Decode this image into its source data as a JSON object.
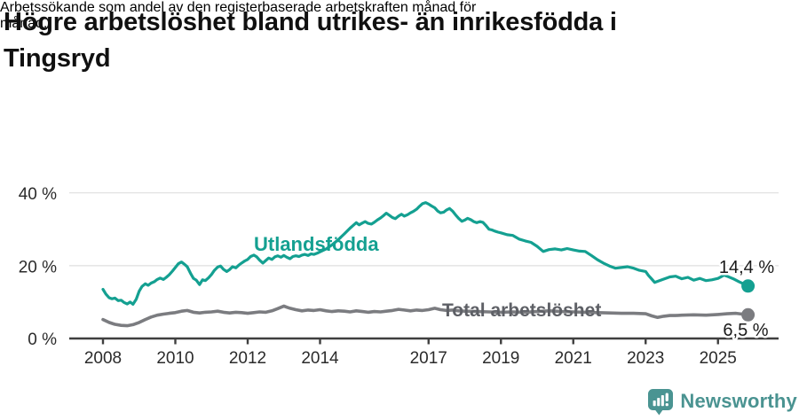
{
  "header": {
    "title_lines": [
      "Högre arbetslöshet bland utrikes- än inrikesfödda i",
      "Tingsryd"
    ],
    "subtitle_lines": [
      "Arbetssökande som andel av den registerbaserade arbetskraften månad för",
      "månad."
    ]
  },
  "footer": {
    "brand": "Newsworthy",
    "logo_icon": "bar-chart-speech-bubble-icon",
    "brand_color": "#4a9391"
  },
  "chart_data": {
    "type": "line",
    "title": "Högre arbetslöshet bland utrikes- än inrikesfödda i Tingsryd",
    "subtitle": "Arbetssökande som andel av den registerbaserade arbetskraften månad för månad.",
    "unit": "%",
    "xlim": [
      2008,
      2025.83
    ],
    "ylim": [
      0,
      40
    ],
    "grid": "horizontal",
    "legend_position": "inline-labels",
    "x_ticks": [
      2008,
      2010,
      2012,
      2014,
      2017,
      2019,
      2021,
      2023,
      2025
    ],
    "y_ticks": [
      {
        "value": 0,
        "label": "0 %"
      },
      {
        "value": 20,
        "label": "20 %"
      },
      {
        "value": 40,
        "label": "40 %"
      }
    ],
    "colors": {
      "grid": "#e2e2e2",
      "axis": "#3f3f3f"
    },
    "series": [
      {
        "id": "utlandsfodda",
        "name": "Utlandsfödda",
        "color": "#14a091",
        "width": 3.2,
        "label_color": "#14a091",
        "label_size": 22,
        "label_pos": {
          "x": 286,
          "y": 283
        },
        "end_label": "14,4 %",
        "end_value": 14.4,
        "end_label_pos": {
          "x": 841,
          "y": 308
        },
        "points": [
          [
            2008.0,
            13.5
          ],
          [
            2008.08,
            12.2
          ],
          [
            2008.17,
            11.2
          ],
          [
            2008.25,
            10.9
          ],
          [
            2008.33,
            11.1
          ],
          [
            2008.42,
            10.4
          ],
          [
            2008.5,
            10.5
          ],
          [
            2008.58,
            9.9
          ],
          [
            2008.67,
            9.5
          ],
          [
            2008.75,
            10.0
          ],
          [
            2008.83,
            9.4
          ],
          [
            2008.92,
            10.8
          ],
          [
            2009.0,
            13.0
          ],
          [
            2009.08,
            14.3
          ],
          [
            2009.17,
            15.0
          ],
          [
            2009.25,
            14.6
          ],
          [
            2009.33,
            15.2
          ],
          [
            2009.42,
            15.6
          ],
          [
            2009.5,
            16.2
          ],
          [
            2009.58,
            16.6
          ],
          [
            2009.67,
            16.2
          ],
          [
            2009.75,
            16.8
          ],
          [
            2009.83,
            17.5
          ],
          [
            2009.92,
            18.5
          ],
          [
            2010.0,
            19.5
          ],
          [
            2010.08,
            20.5
          ],
          [
            2010.17,
            21.0
          ],
          [
            2010.25,
            20.4
          ],
          [
            2010.33,
            19.7
          ],
          [
            2010.42,
            17.9
          ],
          [
            2010.5,
            16.5
          ],
          [
            2010.58,
            16.0
          ],
          [
            2010.67,
            14.8
          ],
          [
            2010.75,
            16.1
          ],
          [
            2010.83,
            15.9
          ],
          [
            2010.92,
            16.7
          ],
          [
            2011.0,
            17.6
          ],
          [
            2011.08,
            18.7
          ],
          [
            2011.17,
            19.6
          ],
          [
            2011.25,
            19.9
          ],
          [
            2011.33,
            19.0
          ],
          [
            2011.42,
            18.4
          ],
          [
            2011.5,
            18.9
          ],
          [
            2011.58,
            19.7
          ],
          [
            2011.67,
            19.4
          ],
          [
            2011.75,
            20.1
          ],
          [
            2011.83,
            20.7
          ],
          [
            2011.92,
            21.3
          ],
          [
            2012.0,
            21.7
          ],
          [
            2012.08,
            22.5
          ],
          [
            2012.17,
            22.9
          ],
          [
            2012.25,
            22.4
          ],
          [
            2012.33,
            21.5
          ],
          [
            2012.42,
            20.7
          ],
          [
            2012.5,
            21.4
          ],
          [
            2012.58,
            22.1
          ],
          [
            2012.67,
            21.7
          ],
          [
            2012.75,
            22.4
          ],
          [
            2012.83,
            22.7
          ],
          [
            2012.92,
            22.3
          ],
          [
            2013.0,
            22.8
          ],
          [
            2013.08,
            22.3
          ],
          [
            2013.17,
            21.9
          ],
          [
            2013.25,
            22.5
          ],
          [
            2013.33,
            22.7
          ],
          [
            2013.42,
            22.5
          ],
          [
            2013.5,
            22.9
          ],
          [
            2013.58,
            23.1
          ],
          [
            2013.67,
            22.8
          ],
          [
            2013.75,
            23.2
          ],
          [
            2013.83,
            23.1
          ],
          [
            2013.92,
            23.4
          ],
          [
            2014.0,
            23.8
          ],
          [
            2014.17,
            24.6
          ],
          [
            2014.33,
            25.7
          ],
          [
            2014.5,
            27.1
          ],
          [
            2014.67,
            28.7
          ],
          [
            2014.83,
            30.3
          ],
          [
            2015.0,
            31.8
          ],
          [
            2015.08,
            31.2
          ],
          [
            2015.17,
            31.7
          ],
          [
            2015.25,
            32.1
          ],
          [
            2015.33,
            31.6
          ],
          [
            2015.42,
            31.4
          ],
          [
            2015.5,
            31.9
          ],
          [
            2015.58,
            32.5
          ],
          [
            2015.67,
            33.1
          ],
          [
            2015.75,
            33.7
          ],
          [
            2015.83,
            34.4
          ],
          [
            2015.92,
            33.8
          ],
          [
            2016.0,
            33.2
          ],
          [
            2016.08,
            32.9
          ],
          [
            2016.17,
            33.6
          ],
          [
            2016.25,
            34.1
          ],
          [
            2016.33,
            33.6
          ],
          [
            2016.42,
            34.0
          ],
          [
            2016.5,
            34.5
          ],
          [
            2016.58,
            34.9
          ],
          [
            2016.67,
            35.5
          ],
          [
            2016.75,
            36.3
          ],
          [
            2016.83,
            37.0
          ],
          [
            2016.92,
            37.3
          ],
          [
            2017.0,
            36.9
          ],
          [
            2017.08,
            36.4
          ],
          [
            2017.17,
            35.9
          ],
          [
            2017.25,
            35.0
          ],
          [
            2017.33,
            34.5
          ],
          [
            2017.42,
            34.7
          ],
          [
            2017.5,
            35.3
          ],
          [
            2017.58,
            35.7
          ],
          [
            2017.67,
            34.9
          ],
          [
            2017.75,
            33.9
          ],
          [
            2017.83,
            33.0
          ],
          [
            2017.92,
            32.2
          ],
          [
            2018.0,
            32.5
          ],
          [
            2018.08,
            33.0
          ],
          [
            2018.17,
            32.6
          ],
          [
            2018.25,
            32.1
          ],
          [
            2018.33,
            31.8
          ],
          [
            2018.42,
            32.1
          ],
          [
            2018.5,
            31.9
          ],
          [
            2018.58,
            31.1
          ],
          [
            2018.67,
            30.0
          ],
          [
            2018.75,
            29.8
          ],
          [
            2018.83,
            29.5
          ],
          [
            2018.92,
            29.2
          ],
          [
            2019.0,
            29.0
          ],
          [
            2019.17,
            28.5
          ],
          [
            2019.33,
            28.3
          ],
          [
            2019.5,
            27.3
          ],
          [
            2019.67,
            26.8
          ],
          [
            2019.83,
            26.4
          ],
          [
            2020.0,
            25.3
          ],
          [
            2020.17,
            23.9
          ],
          [
            2020.33,
            24.4
          ],
          [
            2020.5,
            24.6
          ],
          [
            2020.67,
            24.3
          ],
          [
            2020.83,
            24.7
          ],
          [
            2021.0,
            24.3
          ],
          [
            2021.17,
            24.0
          ],
          [
            2021.33,
            23.9
          ],
          [
            2021.5,
            22.8
          ],
          [
            2021.67,
            21.6
          ],
          [
            2021.83,
            20.7
          ],
          [
            2022.0,
            19.9
          ],
          [
            2022.17,
            19.3
          ],
          [
            2022.33,
            19.5
          ],
          [
            2022.5,
            19.7
          ],
          [
            2022.67,
            19.3
          ],
          [
            2022.83,
            18.7
          ],
          [
            2023.0,
            18.4
          ],
          [
            2023.08,
            17.3
          ],
          [
            2023.17,
            16.3
          ],
          [
            2023.25,
            15.4
          ],
          [
            2023.33,
            15.7
          ],
          [
            2023.5,
            16.3
          ],
          [
            2023.67,
            16.9
          ],
          [
            2023.83,
            17.1
          ],
          [
            2024.0,
            16.4
          ],
          [
            2024.17,
            16.8
          ],
          [
            2024.33,
            16.0
          ],
          [
            2024.5,
            16.5
          ],
          [
            2024.67,
            15.9
          ],
          [
            2024.83,
            16.1
          ],
          [
            2025.0,
            16.5
          ],
          [
            2025.17,
            17.4
          ],
          [
            2025.25,
            17.1
          ],
          [
            2025.42,
            16.4
          ],
          [
            2025.58,
            15.6
          ],
          [
            2025.75,
            14.8
          ],
          [
            2025.83,
            14.4
          ]
        ]
      },
      {
        "id": "total",
        "name": "Total arbetslöshet",
        "color": "#7b7c80",
        "width": 3.6,
        "label_color": "#5e6066",
        "label_size": 21,
        "label_pos": {
          "x": 498,
          "y": 357
        },
        "end_label": "6,5 %",
        "end_value": 6.5,
        "end_label_pos": {
          "x": 840,
          "y": 379
        },
        "points": [
          [
            2008.0,
            5.2
          ],
          [
            2008.17,
            4.4
          ],
          [
            2008.33,
            3.9
          ],
          [
            2008.5,
            3.6
          ],
          [
            2008.67,
            3.5
          ],
          [
            2008.83,
            3.8
          ],
          [
            2009.0,
            4.4
          ],
          [
            2009.17,
            5.2
          ],
          [
            2009.33,
            5.9
          ],
          [
            2009.5,
            6.4
          ],
          [
            2009.67,
            6.7
          ],
          [
            2009.83,
            6.9
          ],
          [
            2010.0,
            7.1
          ],
          [
            2010.17,
            7.5
          ],
          [
            2010.33,
            7.7
          ],
          [
            2010.5,
            7.2
          ],
          [
            2010.67,
            7.0
          ],
          [
            2010.83,
            7.2
          ],
          [
            2011.0,
            7.3
          ],
          [
            2011.17,
            7.5
          ],
          [
            2011.33,
            7.2
          ],
          [
            2011.5,
            7.0
          ],
          [
            2011.67,
            7.2
          ],
          [
            2011.83,
            7.1
          ],
          [
            2012.0,
            6.9
          ],
          [
            2012.17,
            7.1
          ],
          [
            2012.33,
            7.3
          ],
          [
            2012.5,
            7.2
          ],
          [
            2012.67,
            7.6
          ],
          [
            2012.83,
            8.2
          ],
          [
            2013.0,
            8.9
          ],
          [
            2013.08,
            8.6
          ],
          [
            2013.17,
            8.3
          ],
          [
            2013.33,
            7.9
          ],
          [
            2013.5,
            7.6
          ],
          [
            2013.67,
            7.8
          ],
          [
            2013.83,
            7.7
          ],
          [
            2014.0,
            7.9
          ],
          [
            2014.17,
            7.6
          ],
          [
            2014.33,
            7.4
          ],
          [
            2014.5,
            7.6
          ],
          [
            2014.67,
            7.5
          ],
          [
            2014.83,
            7.3
          ],
          [
            2015.0,
            7.6
          ],
          [
            2015.17,
            7.4
          ],
          [
            2015.33,
            7.2
          ],
          [
            2015.5,
            7.4
          ],
          [
            2015.67,
            7.3
          ],
          [
            2015.83,
            7.5
          ],
          [
            2016.0,
            7.7
          ],
          [
            2016.17,
            8.0
          ],
          [
            2016.33,
            7.8
          ],
          [
            2016.5,
            7.6
          ],
          [
            2016.67,
            7.8
          ],
          [
            2016.83,
            7.7
          ],
          [
            2017.0,
            7.9
          ],
          [
            2017.17,
            8.3
          ],
          [
            2017.33,
            7.9
          ],
          [
            2017.5,
            7.7
          ],
          [
            2017.67,
            7.8
          ],
          [
            2017.83,
            7.6
          ],
          [
            2018.0,
            7.5
          ],
          [
            2018.33,
            7.4
          ],
          [
            2018.67,
            7.3
          ],
          [
            2019.0,
            7.2
          ],
          [
            2019.33,
            7.3
          ],
          [
            2019.67,
            7.2
          ],
          [
            2020.0,
            7.4
          ],
          [
            2020.33,
            7.6
          ],
          [
            2020.67,
            7.4
          ],
          [
            2021.0,
            7.3
          ],
          [
            2021.33,
            7.2
          ],
          [
            2021.67,
            7.1
          ],
          [
            2022.0,
            7.0
          ],
          [
            2022.33,
            6.9
          ],
          [
            2022.67,
            6.9
          ],
          [
            2023.0,
            6.8
          ],
          [
            2023.17,
            6.2
          ],
          [
            2023.33,
            5.8
          ],
          [
            2023.5,
            6.1
          ],
          [
            2023.67,
            6.3
          ],
          [
            2023.83,
            6.3
          ],
          [
            2024.0,
            6.4
          ],
          [
            2024.33,
            6.5
          ],
          [
            2024.67,
            6.4
          ],
          [
            2025.0,
            6.6
          ],
          [
            2025.25,
            6.8
          ],
          [
            2025.5,
            6.9
          ],
          [
            2025.67,
            6.7
          ],
          [
            2025.83,
            6.5
          ]
        ]
      }
    ]
  }
}
